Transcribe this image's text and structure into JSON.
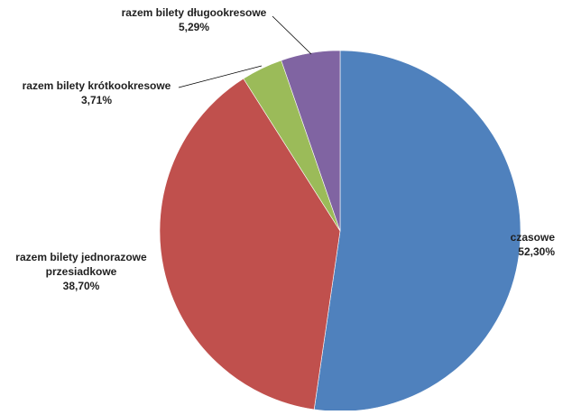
{
  "chart_data": {
    "type": "pie",
    "title": "",
    "slices": [
      {
        "label": "czasowe",
        "value": 52.3,
        "value_label": "52,30%",
        "color": "#4F81BD"
      },
      {
        "label": "razem bilety jednorazowe przesiadkowe",
        "label_lines": [
          "razem bilety jednorazowe",
          "przesiadkowe"
        ],
        "value": 38.7,
        "value_label": "38,70%",
        "color": "#C0504D"
      },
      {
        "label": "razem bilety krótkookresowe",
        "value": 3.71,
        "value_label": "3,71%",
        "color": "#9BBB59"
      },
      {
        "label": "razem bilety długookresowe",
        "value": 5.29,
        "value_label": "5,29%",
        "color": "#8064A2"
      }
    ],
    "start": "12 o'clock",
    "direction": "clockwise",
    "legend": "none"
  }
}
